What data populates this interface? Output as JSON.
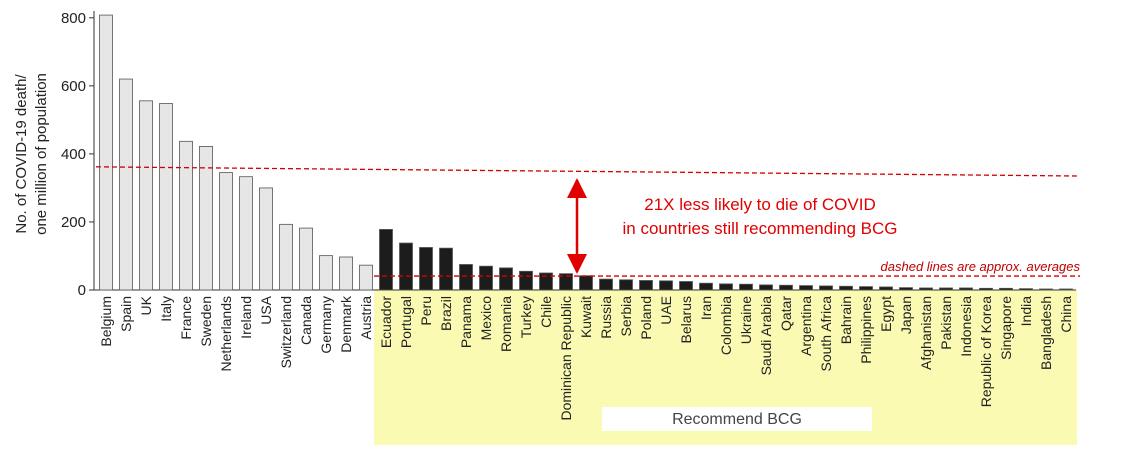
{
  "chart_data": {
    "type": "bar",
    "ylabel": [
      "No. of COVID-19 death/",
      "one million of population"
    ],
    "categories": [
      "Belgium",
      "Spain",
      "UK",
      "Italy",
      "France",
      "Sweden",
      "Netherlands",
      "Ireland",
      "USA",
      "Switzerland",
      "Canada",
      "Germany",
      "Denmark",
      "Austria",
      "Ecuador",
      "Portugal",
      "Peru",
      "Brazil",
      "Panama",
      "Mexico",
      "Romania",
      "Turkey",
      "Chile",
      "Dominican Republic",
      "Kuwait",
      "Russia",
      "Serbia",
      "Poland",
      "UAE",
      "Belarus",
      "Iran",
      "Colombia",
      "Ukraine",
      "Saudi Arabia",
      "Qatar",
      "Argentina",
      "South Africa",
      "Bahrain",
      "Philippines",
      "Egypt",
      "Japan",
      "Afghanistan",
      "Pakistan",
      "Indonesia",
      "Republic of Korea",
      "Singapore",
      "India",
      "Bangladesh",
      "China"
    ],
    "values": [
      808,
      620,
      556,
      548,
      437,
      422,
      345,
      333,
      300,
      193,
      182,
      101,
      97,
      73,
      178,
      138,
      125,
      123,
      75,
      70,
      65,
      55,
      50,
      48,
      42,
      32,
      30,
      28,
      27,
      25,
      20,
      18,
      17,
      15,
      14,
      13,
      12,
      11,
      10,
      9,
      7,
      6,
      6,
      6,
      5,
      5,
      4,
      3,
      3
    ],
    "colors": [
      "#e6e6e6",
      "#e6e6e6",
      "#e6e6e6",
      "#e6e6e6",
      "#e6e6e6",
      "#e6e6e6",
      "#e6e6e6",
      "#e6e6e6",
      "#e6e6e6",
      "#e6e6e6",
      "#e6e6e6",
      "#e6e6e6",
      "#e6e6e6",
      "#e6e6e6",
      "#1c1c1c",
      "#1c1c1c",
      "#1c1c1c",
      "#1c1c1c",
      "#1c1c1c",
      "#1c1c1c",
      "#1c1c1c",
      "#1c1c1c",
      "#1c1c1c",
      "#1c1c1c",
      "#1c1c1c",
      "#1c1c1c",
      "#1c1c1c",
      "#1c1c1c",
      "#1c1c1c",
      "#1c1c1c",
      "#1c1c1c",
      "#1c1c1c",
      "#1c1c1c",
      "#1c1c1c",
      "#1c1c1c",
      "#1c1c1c",
      "#1c1c1c",
      "#1c1c1c",
      "#1c1c1c",
      "#1c1c1c",
      "#1c1c1c",
      "#1c1c1c",
      "#1c1c1c",
      "#1c1c1c",
      "#1c1c1c",
      "#1c1c1c",
      "#1c1c1c",
      "#1c1c1c",
      "#1c1c1c"
    ],
    "highlight": {
      "label": "Recommend BCG",
      "color": "#fafab2",
      "bar_color": "#1c1c1c"
    },
    "reference_lines": [
      {
        "values": [
          362,
          335
        ],
        "color": "#d40000",
        "span": "all"
      },
      {
        "values": [
          41,
          41
        ],
        "color": "#d40000",
        "span": "highlight"
      }
    ],
    "annotations": [
      "21X less likely to die of COVID",
      "in countries still recommending BCG",
      "dashed lines are approx. averages"
    ],
    "ylim": [
      0,
      820
    ],
    "yticks": [
      0,
      200,
      400,
      600,
      800
    ]
  }
}
